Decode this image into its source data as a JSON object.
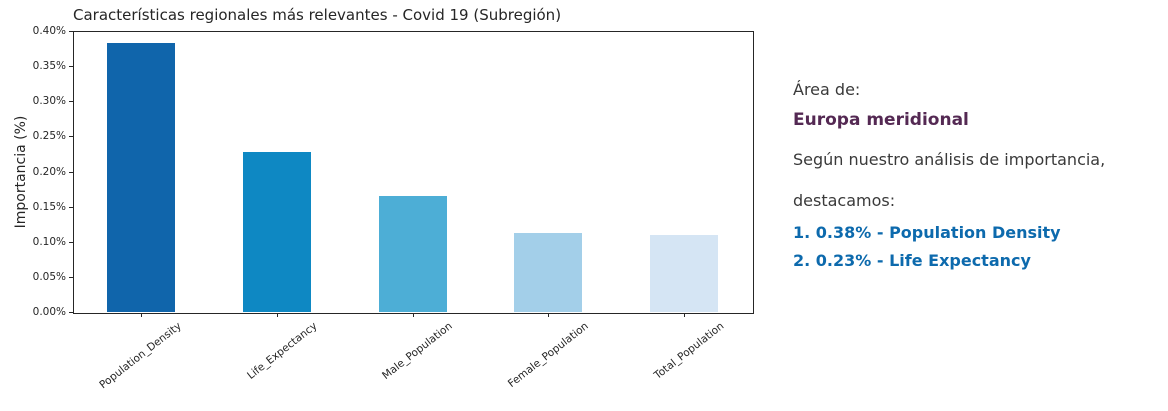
{
  "chart_data": {
    "type": "bar",
    "title": "Características regionales más relevantes - Covid 19 (Subregión)",
    "ylabel": "Importancia (%)",
    "xlabel": "",
    "categories": [
      "Population_Density",
      "Life_Expectancy",
      "Male_Population",
      "Female_Population",
      "Total_Population"
    ],
    "values": [
      0.383,
      0.228,
      0.165,
      0.112,
      0.109
    ],
    "ylim": [
      0,
      0.4
    ],
    "ytick_step": 0.05,
    "ytick_labels": [
      "0.00%",
      "0.05%",
      "0.10%",
      "0.15%",
      "0.20%",
      "0.25%",
      "0.30%",
      "0.35%",
      "0.40%"
    ],
    "grid": false,
    "legend": "none",
    "bar_colors": [
      "#1065ab",
      "#0e88c3",
      "#4daed6",
      "#a3cfe9",
      "#d5e5f4"
    ]
  },
  "side_panel": {
    "area_label": "Área de:",
    "region_name": "Europa meridional",
    "analysis_line1": "Según nuestro análisis de importancia,",
    "analysis_line2": "destacamos:",
    "highlights": [
      "1. 0.38% - Population Density",
      "2. 0.23% - Life Expectancy"
    ]
  },
  "colors": {
    "region_name_text": "#542953",
    "highlight_text": "#0d6aad",
    "body_text": "#3a3a3a",
    "axis_text": "#262626"
  }
}
